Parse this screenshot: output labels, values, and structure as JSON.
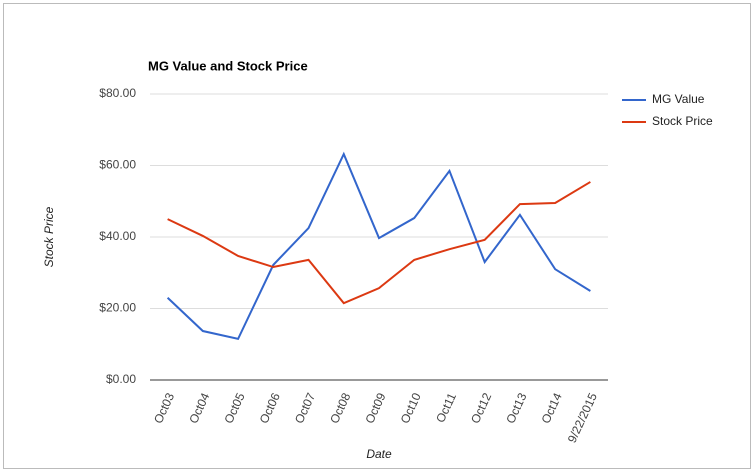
{
  "chart_data": {
    "type": "line",
    "title": "MG Value and Stock Price",
    "x_label": "Date",
    "y_label": "Stock Price",
    "categories": [
      "Oct03",
      "Oct04",
      "Oct05",
      "Oct06",
      "Oct07",
      "Oct08",
      "Oct09",
      "Oct10",
      "Oct11",
      "Oct12",
      "Oct13",
      "Oct14",
      "9/22/2015"
    ],
    "series": [
      {
        "name": "MG Value",
        "color": "#3366cc",
        "values": [
          23,
          13.7,
          11.5,
          32.2,
          42.5,
          63.2,
          39.7,
          45.3,
          58.5,
          33,
          46.2,
          31,
          24.9
        ]
      },
      {
        "name": "Stock Price",
        "color": "#dc3912",
        "values": [
          45,
          40.3,
          34.7,
          31.6,
          33.6,
          21.5,
          25.7,
          33.6,
          36.6,
          39.2,
          49.2,
          49.5,
          55.4
        ]
      }
    ],
    "ylim": [
      0,
      80
    ],
    "yticks": [
      {
        "value": 0,
        "label": "$0.00"
      },
      {
        "value": 20,
        "label": "$20.00"
      },
      {
        "value": 40,
        "label": "$40.00"
      },
      {
        "value": 60,
        "label": "$60.00"
      },
      {
        "value": 80,
        "label": "$80.00"
      }
    ],
    "grid": true,
    "legend": "right"
  }
}
